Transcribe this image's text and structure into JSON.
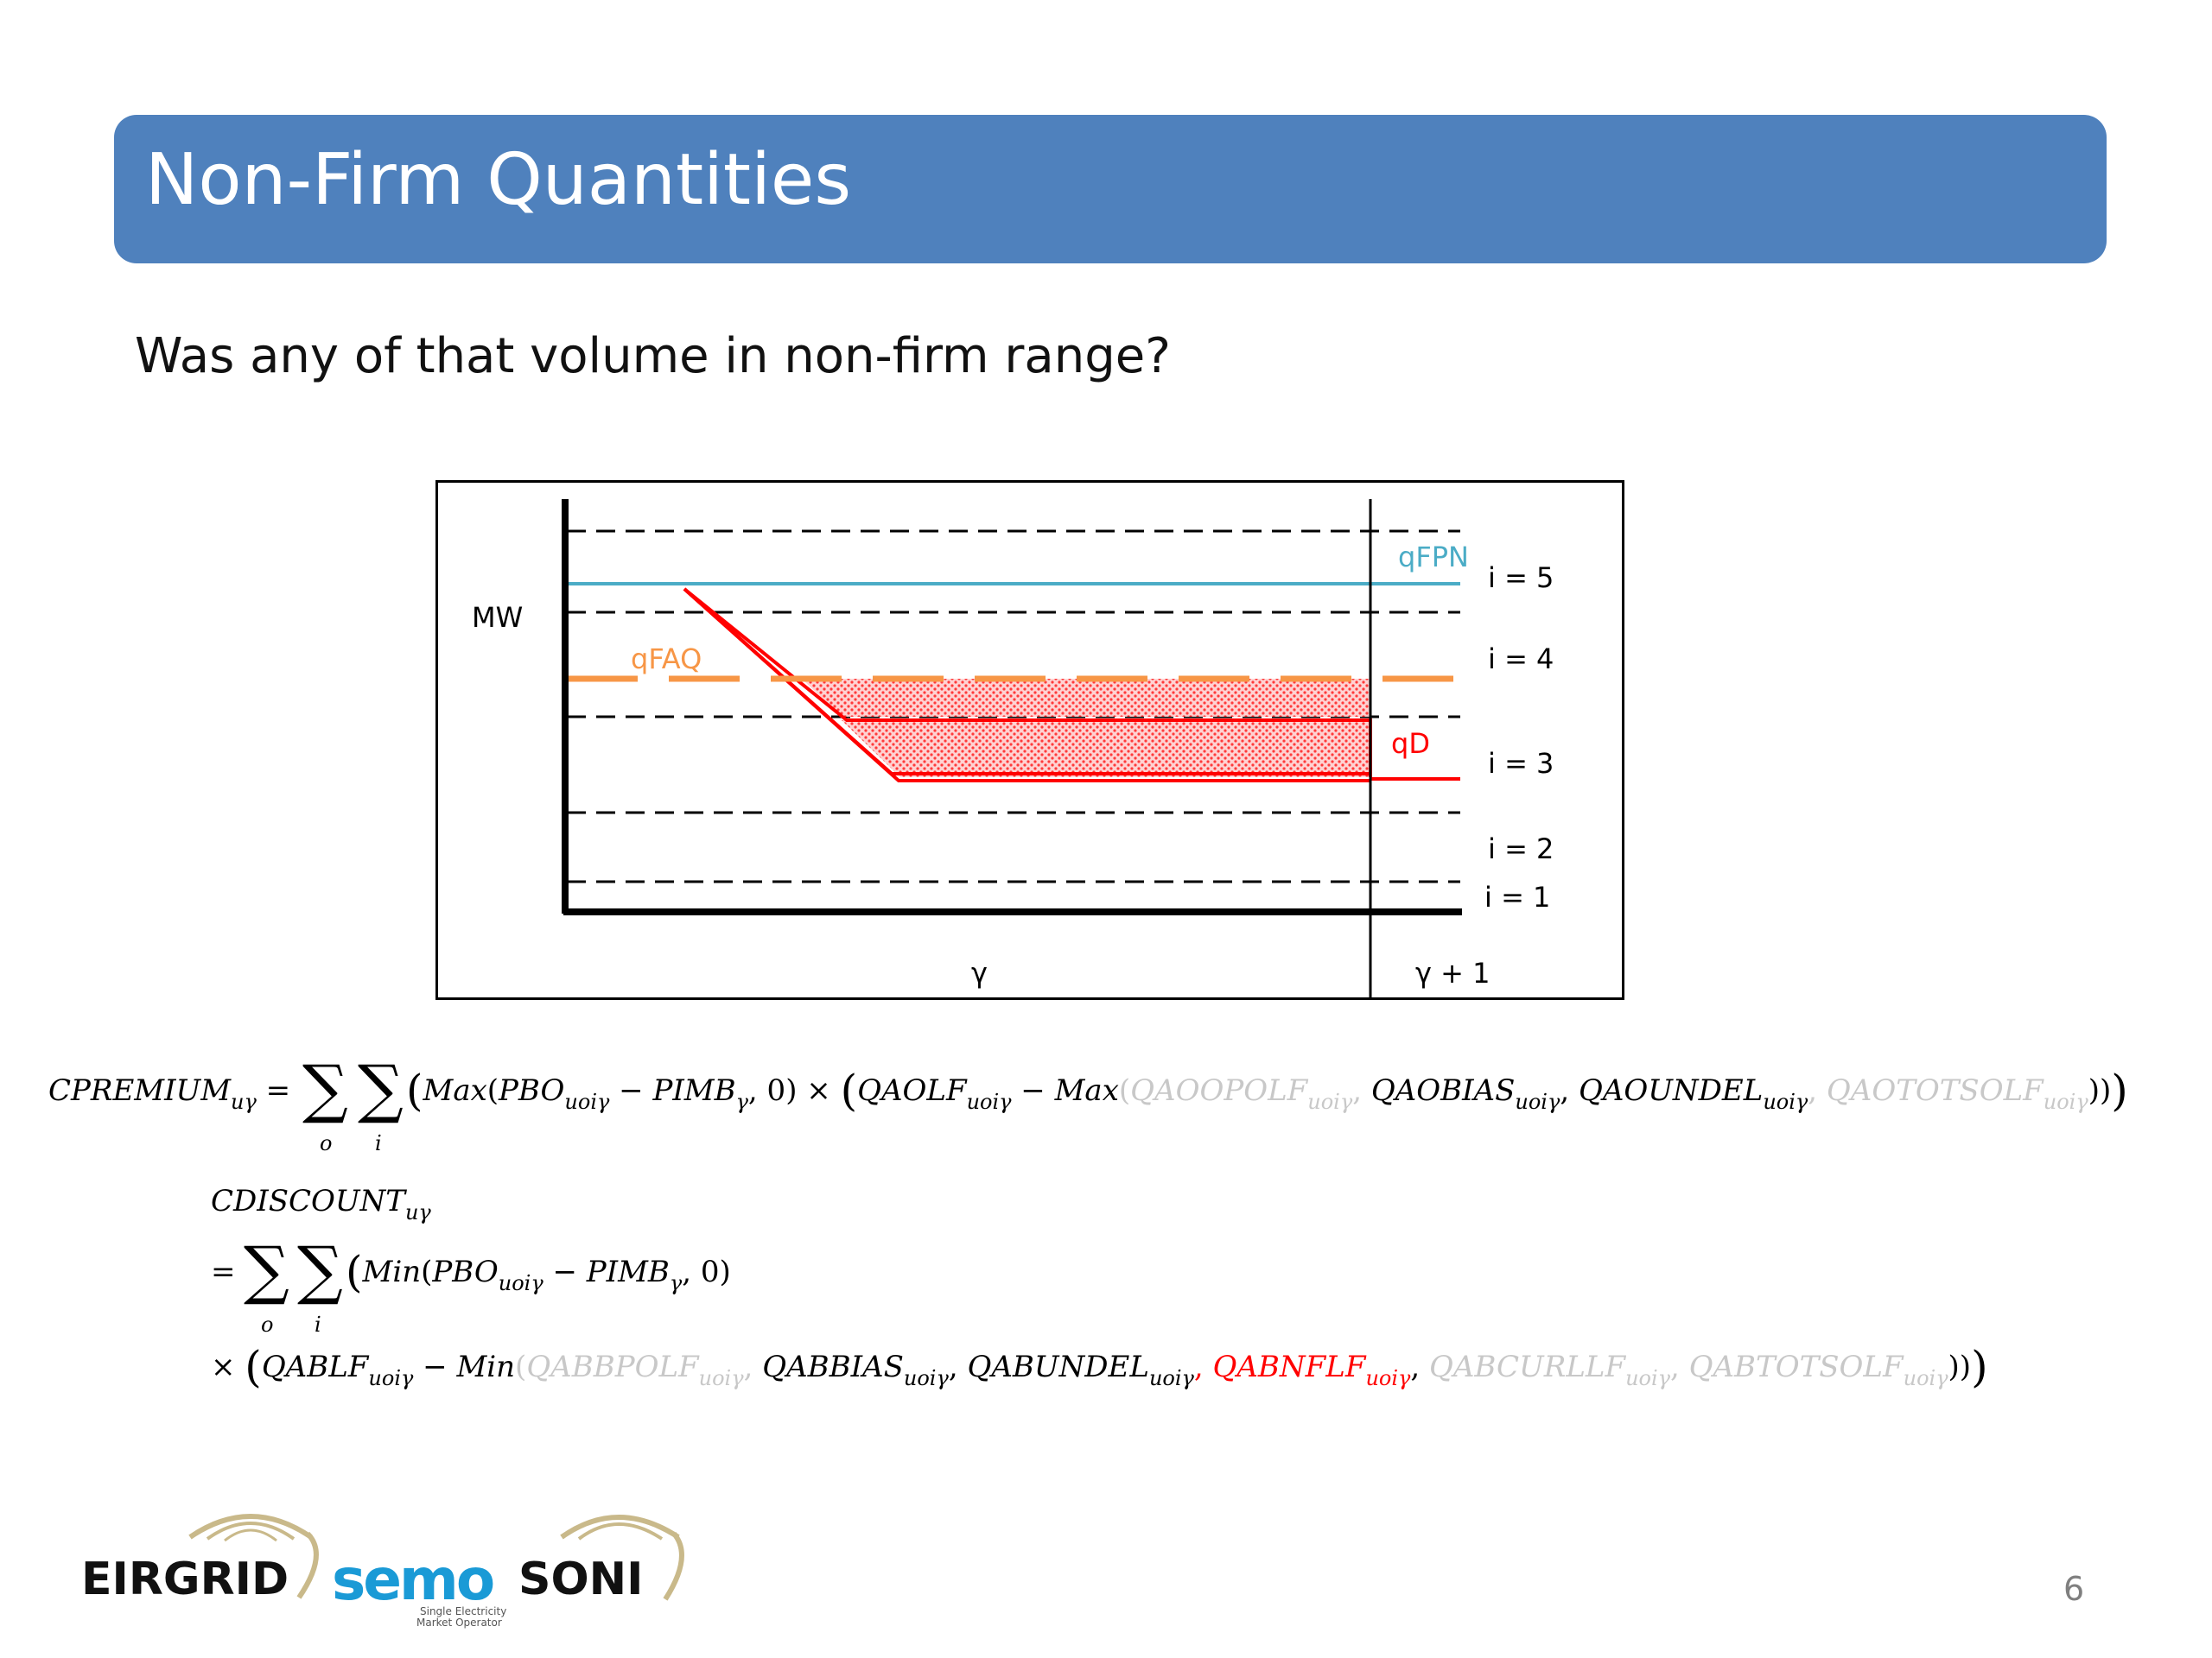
{
  "slide": {
    "title": "Non-Firm Quantities",
    "subtitle": "Was any of that volume in non-firm range?",
    "page_number": "6"
  },
  "diagram": {
    "y_label": "MW",
    "x_labels": [
      "γ",
      "γ + 1"
    ],
    "bands": [
      "i = 5",
      "i = 4",
      "i = 3",
      "i = 2",
      "i = 1"
    ],
    "lines": {
      "qFPN": {
        "label": "qFPN",
        "color": "#4bacc6"
      },
      "qFAQ": {
        "label": "qFAQ",
        "color": "#f79646"
      },
      "qD": {
        "label": "qD",
        "color": "#ff0000"
      }
    },
    "hatch_color": "#ff0000"
  },
  "formula1": {
    "lhs": "CPREMIUM",
    "lhs_sub": "uγ",
    "sum_o": "o",
    "sum_i": "i",
    "max": "Max",
    "pbo": "PBO",
    "pbo_sub": "uoiγ",
    "pimb": "PIMB",
    "pimb_sub": "γ",
    "zero": "0",
    "qaolf": "QAOLF",
    "qaolf_sub": "uoiγ",
    "terms": [
      {
        "name": "QAOOPOLF",
        "sub": "uoiγ",
        "color": "#c8c8c8"
      },
      {
        "name": "QAOBIAS",
        "sub": "uoiγ",
        "color": "#000000"
      },
      {
        "name": "QAOUNDEL",
        "sub": "uoiγ",
        "color": "#000000"
      },
      {
        "name": "QAOTOTSOLF",
        "sub": "uoiγ",
        "color": "#c8c8c8"
      }
    ]
  },
  "formula2": {
    "lhs": "CDISCOUNT",
    "lhs_sub": "uγ",
    "sum_o": "o",
    "sum_i": "i",
    "min": "Min",
    "pbo": "PBO",
    "pbo_sub": "uoiγ",
    "pimb": "PIMB",
    "pimb_sub": "γ",
    "zero": "0",
    "qablf": "QABLF",
    "qablf_sub": "uoiγ",
    "terms": [
      {
        "name": "QABBPOLF",
        "sub": "uoiγ",
        "color": "#c8c8c8"
      },
      {
        "name": "QABBIAS",
        "sub": "uoiγ",
        "color": "#000000"
      },
      {
        "name": "QABUNDEL",
        "sub": "uoiγ",
        "color": "#000000"
      },
      {
        "name": "QABNFLF",
        "sub": "uoiγ",
        "color": "#ff0000"
      },
      {
        "name": "QABCURLLF",
        "sub": "uoiγ",
        "color": "#c8c8c8"
      },
      {
        "name": "QABTOTSOLF",
        "sub": "uoiγ",
        "color": "#c8c8c8"
      }
    ]
  },
  "logos": {
    "eirgrid": "EIRGRID",
    "semo": "semo",
    "semo_tagline": [
      "Single Electricity",
      "Market Operator"
    ],
    "soni": "SONI"
  }
}
